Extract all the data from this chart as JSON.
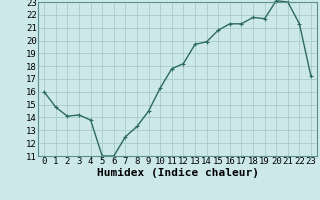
{
  "x": [
    0,
    1,
    2,
    3,
    4,
    5,
    6,
    7,
    8,
    9,
    10,
    11,
    12,
    13,
    14,
    15,
    16,
    17,
    18,
    19,
    20,
    21,
    22,
    23
  ],
  "y": [
    16,
    14.8,
    14.1,
    14.2,
    13.8,
    11.0,
    11.0,
    12.5,
    13.3,
    14.5,
    16.3,
    17.8,
    18.2,
    19.7,
    19.9,
    20.8,
    21.3,
    21.3,
    21.8,
    21.7,
    23.1,
    23.0,
    21.3,
    17.2
  ],
  "line_color": "#2d6b5e",
  "marker": "+",
  "bg_color": "#cce8e8",
  "grid_color": "#aacccc",
  "xlabel": "Humidex (Indice chaleur)",
  "xlabel_fontsize": 8,
  "xlim": [
    -0.5,
    23.5
  ],
  "ylim": [
    11,
    23
  ],
  "yticks": [
    11,
    12,
    13,
    14,
    15,
    16,
    17,
    18,
    19,
    20,
    21,
    22,
    23
  ],
  "xticks": [
    0,
    1,
    2,
    3,
    4,
    5,
    6,
    7,
    8,
    9,
    10,
    11,
    12,
    13,
    14,
    15,
    16,
    17,
    18,
    19,
    20,
    21,
    22,
    23
  ],
  "tick_fontsize": 6.5,
  "marker_size": 3,
  "linewidth": 1.0
}
